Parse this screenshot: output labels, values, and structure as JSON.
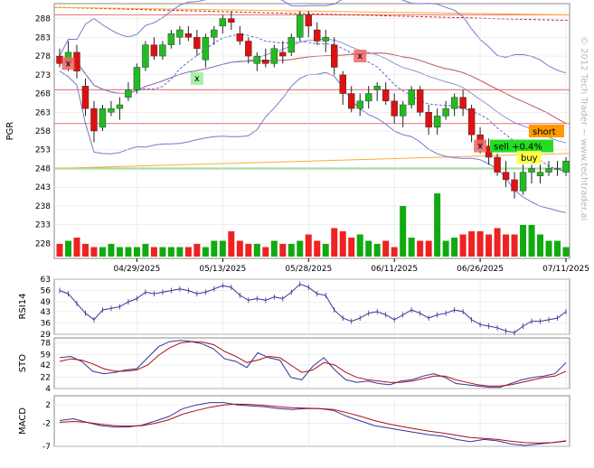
{
  "watermark": "© 2012 Tech Trader ~ www.techtrader.ai",
  "colors": {
    "up": "#22bb22",
    "down": "#dd1111",
    "volume_up": "#11aa11",
    "volume_down": "#ee2222",
    "bollinger": "#7777cc",
    "ma_short": "#6666cc",
    "ma_long": "#bb5555",
    "resistance": "#e06666",
    "support": "#66cc66",
    "channel": "#ffaa33",
    "osc_line": "#333399",
    "osc_signal": "#aa1111",
    "grid": "#dddddd"
  },
  "chart_data": [
    {
      "id": "price",
      "type": "candlestick",
      "ylabel": "PGR",
      "ylim": [
        224,
        292
      ],
      "y_ticks": [
        228,
        233,
        238,
        243,
        248,
        253,
        258,
        263,
        268,
        273,
        278,
        283,
        288
      ],
      "x_tick_labels": [
        "04/29/2025",
        "05/13/2025",
        "05/28/2025",
        "06/11/2025",
        "06/26/2025",
        "07/11/2025"
      ],
      "x_tick_index": [
        9,
        19,
        29,
        39,
        49,
        59
      ],
      "candles": [
        [
          278,
          280,
          275,
          276
        ],
        [
          276,
          282,
          274,
          279
        ],
        [
          279,
          281,
          272,
          274
        ],
        [
          270,
          272,
          262,
          264
        ],
        [
          264,
          266,
          255,
          258
        ],
        [
          259,
          265,
          258,
          264
        ],
        [
          263,
          266,
          262,
          264
        ],
        [
          264,
          267,
          261,
          265
        ],
        [
          267,
          271,
          266,
          269
        ],
        [
          269,
          276,
          268,
          275
        ],
        [
          275,
          282,
          274,
          281
        ],
        [
          281,
          283,
          277,
          278
        ],
        [
          278,
          282,
          277,
          281
        ],
        [
          281,
          285,
          280,
          284
        ],
        [
          283,
          286,
          281,
          285
        ],
        [
          284,
          286,
          282,
          283
        ],
        [
          283,
          285,
          278,
          280
        ],
        [
          277,
          284,
          275,
          283
        ],
        [
          283,
          286,
          281,
          285
        ],
        [
          286,
          289,
          284,
          288
        ],
        [
          288,
          290,
          285,
          287
        ],
        [
          284,
          286,
          281,
          282
        ],
        [
          282,
          283,
          276,
          278
        ],
        [
          276,
          279,
          274,
          278
        ],
        [
          277,
          280,
          275,
          276
        ],
        [
          276,
          281,
          275,
          280
        ],
        [
          279,
          282,
          276,
          278
        ],
        [
          279,
          284,
          278,
          283
        ],
        [
          283,
          290,
          282,
          289
        ],
        [
          289,
          290,
          283,
          286
        ],
        [
          285,
          287,
          281,
          282
        ],
        [
          282,
          285,
          279,
          283
        ],
        [
          281,
          283,
          273,
          275
        ],
        [
          273,
          274,
          265,
          268
        ],
        [
          268,
          270,
          263,
          264
        ],
        [
          264,
          268,
          262,
          266
        ],
        [
          266,
          270,
          264,
          268
        ],
        [
          269,
          271,
          266,
          270
        ],
        [
          269,
          271,
          265,
          266
        ],
        [
          266,
          268,
          260,
          262
        ],
        [
          262,
          266,
          259,
          265
        ],
        [
          265,
          270,
          264,
          269
        ],
        [
          269,
          270,
          262,
          263
        ],
        [
          263,
          265,
          257,
          259
        ],
        [
          259,
          264,
          257,
          262
        ],
        [
          262,
          266,
          261,
          264
        ],
        [
          264,
          268,
          262,
          267
        ],
        [
          267,
          269,
          262,
          264
        ],
        [
          264,
          265,
          255,
          257
        ],
        [
          257,
          259,
          252,
          254
        ],
        [
          254,
          256,
          249,
          251
        ],
        [
          251,
          252,
          246,
          247
        ],
        [
          247,
          250,
          243,
          245
        ],
        [
          245,
          247,
          240,
          242
        ],
        [
          242,
          249,
          241,
          247
        ],
        [
          247,
          249,
          244,
          248
        ],
        [
          246,
          249,
          244,
          247
        ],
        [
          247,
          250,
          246,
          248
        ],
        [
          248,
          250,
          246,
          248
        ],
        [
          247,
          251,
          246,
          250
        ]
      ],
      "volume": [
        4,
        5,
        6,
        4,
        3,
        3,
        4,
        3,
        3,
        3,
        4,
        3,
        3,
        3,
        3,
        3,
        4,
        3,
        5,
        5,
        8,
        5,
        4,
        4,
        3,
        5,
        4,
        4,
        5,
        7,
        5,
        4,
        9,
        8,
        6,
        7,
        5,
        4,
        5,
        3,
        16,
        6,
        5,
        5,
        20,
        5,
        6,
        7,
        8,
        8,
        7,
        9,
        7,
        7,
        10,
        10,
        7,
        5,
        5,
        3
      ],
      "markers": [
        {
          "label": "x",
          "color": "#ee6666",
          "index": 1,
          "y": 276
        },
        {
          "label": "x",
          "color": "#99ee99",
          "index": 16,
          "y": 272
        },
        {
          "label": "x",
          "color": "#ee6666",
          "index": 35,
          "y": 278
        },
        {
          "label": "x",
          "color": "#ee6666",
          "index": 49,
          "y": 254
        }
      ],
      "tags": [
        {
          "label": "short",
          "bg": "#ff9900",
          "y": 258
        },
        {
          "label": "sell +0.4%",
          "bg": "#22dd22",
          "y": 254
        },
        {
          "label": "buy",
          "bg": "#ffff44",
          "y": 251
        }
      ]
    },
    {
      "id": "rsi",
      "type": "line",
      "ylabel": "RSI14",
      "ylim": [
        29,
        63
      ],
      "y_ticks": [
        29,
        36,
        43,
        49,
        56,
        63
      ],
      "values": [
        56,
        54,
        48,
        42,
        38,
        44,
        45,
        46,
        49,
        51,
        55,
        54,
        55,
        56,
        57,
        56,
        54,
        55,
        57,
        59,
        58,
        53,
        50,
        51,
        50,
        52,
        51,
        55,
        60,
        58,
        54,
        53,
        44,
        39,
        37,
        39,
        42,
        43,
        41,
        38,
        41,
        44,
        42,
        39,
        41,
        42,
        44,
        43,
        38,
        35,
        34,
        33,
        31,
        30,
        34,
        37,
        37,
        38,
        39,
        43
      ]
    },
    {
      "id": "sto",
      "type": "line",
      "ylabel": "STO",
      "ylim": [
        4,
        86
      ],
      "y_ticks": [
        4,
        22,
        42,
        59,
        78
      ],
      "k": [
        54,
        56,
        48,
        32,
        28,
        30,
        34,
        36,
        54,
        72,
        80,
        82,
        80,
        76,
        68,
        52,
        48,
        38,
        62,
        54,
        50,
        22,
        18,
        40,
        54,
        34,
        18,
        14,
        16,
        12,
        10,
        16,
        18,
        24,
        28,
        22,
        12,
        10,
        8,
        6,
        6,
        12,
        18,
        22,
        24,
        28,
        46
      ],
      "d": [
        48,
        52,
        50,
        44,
        36,
        32,
        32,
        34,
        42,
        58,
        70,
        78,
        80,
        79,
        75,
        64,
        56,
        46,
        50,
        56,
        54,
        42,
        30,
        34,
        46,
        42,
        30,
        22,
        18,
        16,
        14,
        14,
        16,
        20,
        24,
        24,
        18,
        14,
        10,
        8,
        8,
        10,
        14,
        18,
        22,
        24,
        32
      ]
    },
    {
      "id": "macd",
      "type": "line",
      "ylabel": "MACD",
      "ylim": [
        -7,
        4
      ],
      "y_ticks": [
        -7,
        -2,
        2
      ],
      "macd": [
        -1.4,
        -1.0,
        -1.8,
        -2.5,
        -2.8,
        -2.8,
        -2.4,
        -1.5,
        -0.5,
        1.2,
        2.0,
        2.5,
        2.5,
        2.0,
        1.8,
        1.6,
        1.2,
        1.0,
        1.2,
        1.2,
        0.8,
        -0.5,
        -1.5,
        -2.5,
        -3.0,
        -3.5,
        -4.0,
        -4.5,
        -4.8,
        -5.5,
        -6.0,
        -5.5,
        -5.8,
        -6.5,
        -6.8,
        -6.5,
        -6.2,
        -5.8
      ],
      "signal": [
        -1.8,
        -1.6,
        -1.8,
        -2.2,
        -2.5,
        -2.6,
        -2.5,
        -2.0,
        -1.2,
        0.0,
        0.8,
        1.5,
        2.0,
        2.2,
        2.1,
        1.9,
        1.6,
        1.4,
        1.3,
        1.2,
        1.0,
        0.3,
        -0.5,
        -1.4,
        -2.1,
        -2.7,
        -3.2,
        -3.7,
        -4.1,
        -4.6,
        -5.1,
        -5.3,
        -5.5,
        -5.9,
        -6.2,
        -6.3,
        -6.2,
        -5.9
      ]
    }
  ]
}
